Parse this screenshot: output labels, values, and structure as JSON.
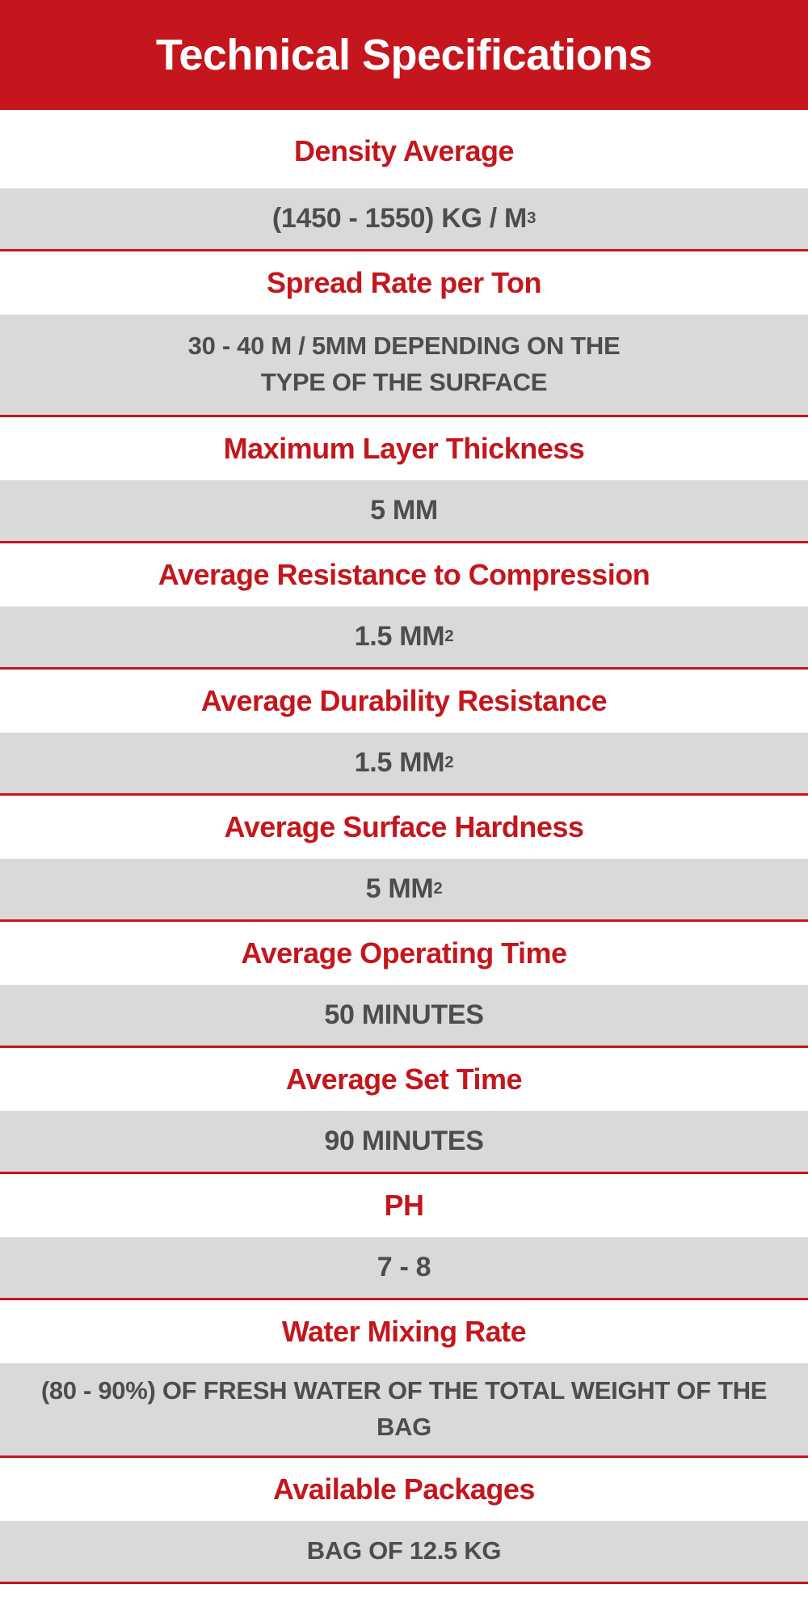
{
  "title": "Technical Specifications",
  "colors": {
    "accent": "#c4161c",
    "row_bg": "#d9d9d9",
    "value_text": "#4d4d4d"
  },
  "specs": [
    {
      "label": "Density Average",
      "value": "(1450 - 1550) KG / M",
      "sup": "3"
    },
    {
      "label": "Spread Rate per Ton",
      "value": "30 - 40 M / 5MM DEPENDING ON THE TYPE OF THE SURFACE"
    },
    {
      "label": "Maximum Layer Thickness",
      "value": "5 MM"
    },
    {
      "label": "Average Resistance to Compression",
      "value": "1.5 MM",
      "sup": "2"
    },
    {
      "label": "Average Durability Resistance",
      "value": "1.5 MM",
      "sup": "2"
    },
    {
      "label": "Average Surface Hardness",
      "value": "5 MM",
      "sup": "2"
    },
    {
      "label": "Average Operating Time",
      "value": "50 MINUTES"
    },
    {
      "label": "Average Set Time",
      "value": "90 MINUTES"
    },
    {
      "label": "PH",
      "value": "7 - 8"
    },
    {
      "label": "Water Mixing Rate",
      "value": "(80 - 90%) OF FRESH WATER OF THE TOTAL WEIGHT OF THE BAG"
    },
    {
      "label": "Available Packages",
      "value": "BAG OF 12.5 KG"
    }
  ]
}
